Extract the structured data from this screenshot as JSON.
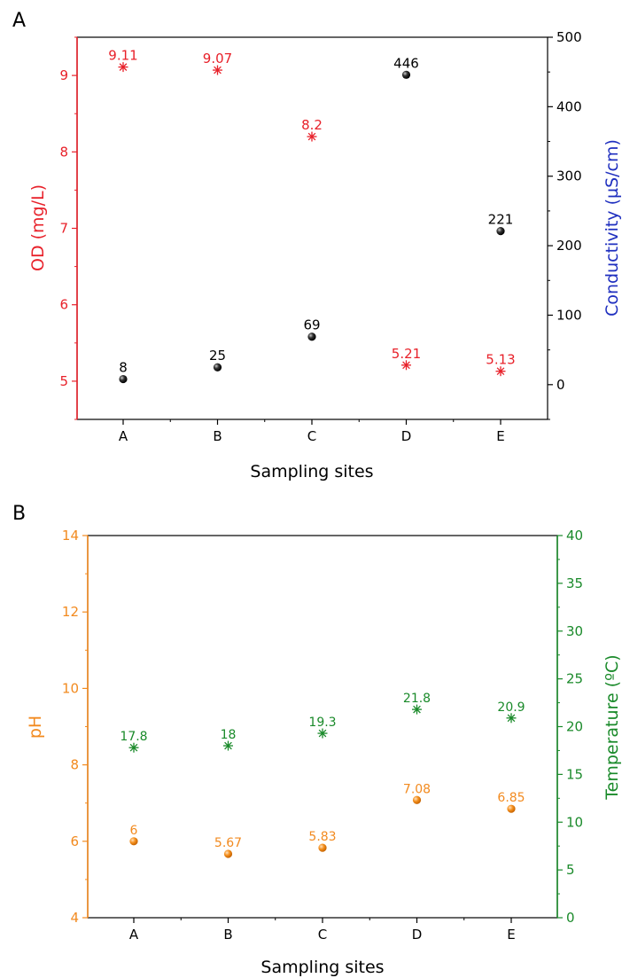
{
  "chart_data": [
    {
      "panel": "A",
      "type": "scatter",
      "xlabel": "Sampling sites",
      "categories": [
        "A",
        "B",
        "C",
        "D",
        "E"
      ],
      "y_left": {
        "label": "OD (mg/L)",
        "range": [
          4.5,
          9.5
        ],
        "ticks": [
          5,
          6,
          7,
          8,
          9
        ],
        "color": "#e8212a"
      },
      "y_right": {
        "label": "Conductivity (µS/cm)",
        "range": [
          -50,
          500
        ],
        "ticks": [
          0,
          100,
          200,
          300,
          400,
          500
        ],
        "color": "#1f2fbf"
      },
      "series": [
        {
          "axis": "left",
          "marker": "asterisk",
          "color": "#e8212a",
          "values": [
            9.11,
            9.07,
            8.2,
            5.21,
            5.13
          ],
          "labels": [
            "9.11",
            "9.07",
            "8.2",
            "5.21",
            "5.13"
          ]
        },
        {
          "axis": "right",
          "marker": "sphere",
          "color": "#000000",
          "values": [
            8,
            25,
            69,
            446,
            221
          ],
          "labels": [
            "8",
            "25",
            "69",
            "446",
            "221"
          ]
        }
      ]
    },
    {
      "panel": "B",
      "type": "scatter",
      "xlabel": "Sampling sites",
      "categories": [
        "A",
        "B",
        "C",
        "D",
        "E"
      ],
      "y_left": {
        "label": "pH",
        "range": [
          4,
          14
        ],
        "ticks": [
          4,
          6,
          8,
          10,
          12,
          14
        ],
        "color": "#f28a1f"
      },
      "y_right": {
        "label": "Temperature (ºC)",
        "range": [
          0,
          40
        ],
        "ticks": [
          0,
          5,
          10,
          15,
          20,
          25,
          30,
          35,
          40
        ],
        "color": "#1a8a2a"
      },
      "series": [
        {
          "axis": "left",
          "marker": "sphere",
          "color": "#f28a1f",
          "values": [
            6,
            5.67,
            5.83,
            7.08,
            6.85
          ],
          "labels": [
            "6",
            "5.67",
            "5.83",
            "7.08",
            "6.85"
          ]
        },
        {
          "axis": "right",
          "marker": "asterisk",
          "color": "#1a8a2a",
          "values": [
            17.8,
            18,
            19.3,
            21.8,
            20.9
          ],
          "labels": [
            "17.8",
            "18",
            "19.3",
            "21.8",
            "20.9"
          ]
        }
      ]
    }
  ]
}
